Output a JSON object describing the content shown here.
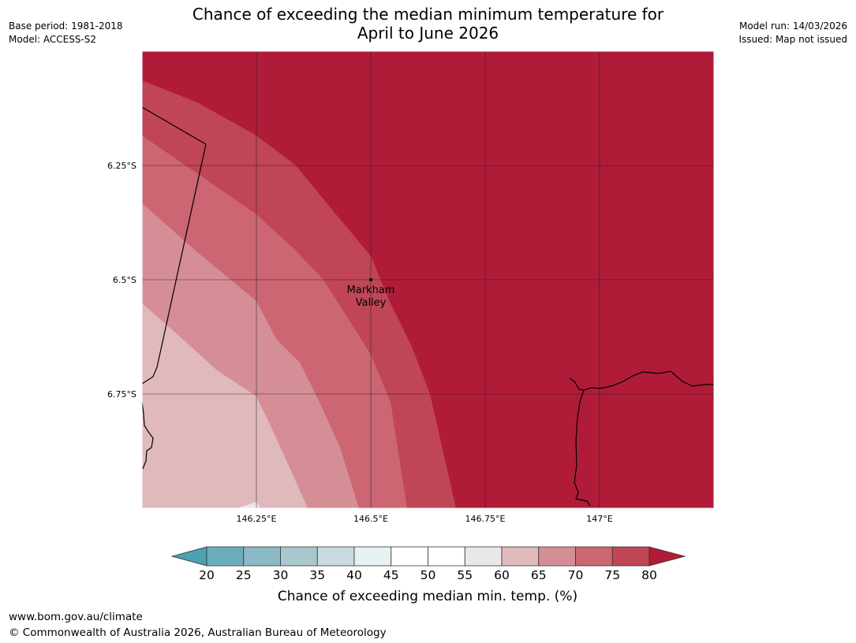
{
  "header": {
    "title_line1": "Chance of exceeding the median minimum temperature for",
    "title_line2": "April to June 2026",
    "base_period": "Base period: 1981-2018",
    "model": "Model: ACCESS-S2",
    "model_run": "Model run: 14/03/2026",
    "issued": "Issued: Map not issued"
  },
  "map": {
    "latitude_labels": [
      "6.25°S",
      "6.5°S",
      "6.75°S"
    ],
    "longitude_labels": [
      "146.25°E",
      "146.5°E",
      "146.75°E",
      "147°E"
    ],
    "place": {
      "name_line1": "Markham",
      "name_line2": "Valley",
      "lon": 146.5,
      "lat": -6.5
    }
  },
  "legend": {
    "ticks": [
      "20",
      "25",
      "30",
      "35",
      "40",
      "45",
      "50",
      "55",
      "60",
      "65",
      "70",
      "75",
      "80"
    ],
    "colors": [
      "#4aa2b3",
      "#6aaebd",
      "#8bb9c5",
      "#a8c8ce",
      "#c9dbdf",
      "#e8f1f3",
      "#ffffff",
      "#ffffff",
      "#e8e8e8",
      "#e0b9bd",
      "#d68e96",
      "#cb6672",
      "#c04655",
      "#b01c38"
    ],
    "label": "Chance of exceeding median min. temp. (%)"
  },
  "footer": {
    "url": "www.bom.gov.au/climate",
    "copyright": "© Commonwealth of Australia 2026, Australian Bureau of Meteorology"
  }
}
